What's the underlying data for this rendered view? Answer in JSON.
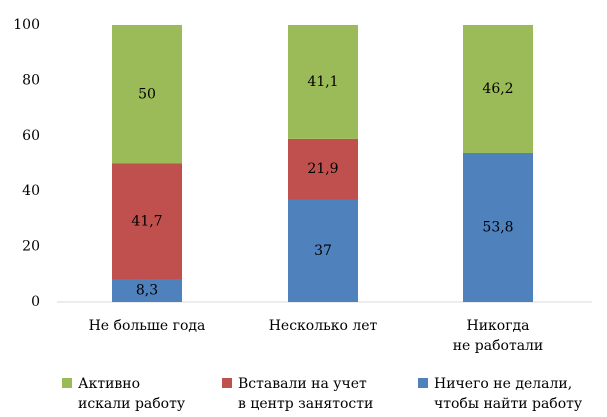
{
  "chart_data": {
    "type": "stacked_bar",
    "categories": [
      "Не больше года",
      "Несколько лет",
      "Никогда\nне работали"
    ],
    "series": [
      {
        "name": "Активно\nискали работу",
        "color": "#9bbb59",
        "values": [
          50,
          41.1,
          46.2
        ],
        "value_labels": [
          "50",
          "41,1",
          "46,2"
        ]
      },
      {
        "name": "Вставали на учет\nв центр занятости",
        "color": "#c0504d",
        "values": [
          41.7,
          21.9,
          null
        ],
        "value_labels": [
          "41,7",
          "21,9",
          null
        ]
      },
      {
        "name": "Ничего не делали,\nчтобы найти работу",
        "color": "#4f81bd",
        "values": [
          8.3,
          37,
          53.8
        ],
        "value_labels": [
          "8,3",
          "37",
          "53,8"
        ]
      }
    ],
    "ylim": [
      0,
      100
    ],
    "yticks": [
      0,
      20,
      40,
      60,
      80,
      100
    ],
    "grid": false,
    "legend": "bottom"
  }
}
